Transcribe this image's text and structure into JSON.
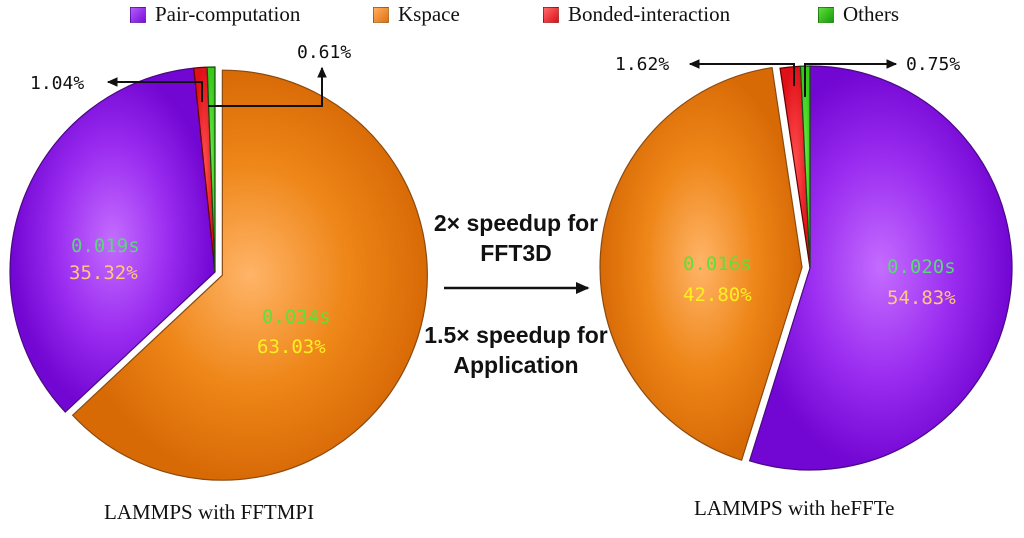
{
  "chart_data": {
    "type": "pie",
    "legend": {
      "position": "top",
      "entries": [
        {
          "name": "Pair-computation",
          "color": "#8a1ae6"
        },
        {
          "name": "Kspace",
          "color": "#e8801a"
        },
        {
          "name": "Bonded-interaction",
          "color": "#e81c24"
        },
        {
          "name": "Others",
          "color": "#3fd21c"
        }
      ]
    },
    "pies": [
      {
        "title": "LAMMPS with FFTMPI",
        "slices": [
          {
            "name": "Kspace",
            "percent": 63.03,
            "percent_label": "63.03%",
            "time_label": "0.034s",
            "exploded": true
          },
          {
            "name": "Pair-computation",
            "percent": 35.32,
            "percent_label": "35.32%",
            "time_label": "0.019s"
          },
          {
            "name": "Bonded-interaction",
            "percent": 1.04,
            "percent_label": "1.04%"
          },
          {
            "name": "Others",
            "percent": 0.61,
            "percent_label": "0.61%"
          }
        ]
      },
      {
        "title": "LAMMPS with heFFTe",
        "slices": [
          {
            "name": "Pair-computation",
            "percent": 54.83,
            "percent_label": "54.83%",
            "time_label": "0.020s"
          },
          {
            "name": "Kspace",
            "percent": 42.8,
            "percent_label": "42.80%",
            "time_label": "0.016s",
            "exploded": true
          },
          {
            "name": "Bonded-interaction",
            "percent": 1.62,
            "percent_label": "1.62%"
          },
          {
            "name": "Others",
            "percent": 0.75,
            "percent_label": "0.75%"
          }
        ]
      }
    ],
    "annotations": {
      "fft_speedup": [
        "2× speedup for",
        "FFT3D"
      ],
      "app_speedup": [
        "1.5× speedup for",
        "Application"
      ]
    },
    "label_colors": {
      "time_purple": "#5cd67a",
      "pct_purple": "#ffc878",
      "time_orange": "#5ee038",
      "pct_orange": "#ffee22"
    }
  }
}
